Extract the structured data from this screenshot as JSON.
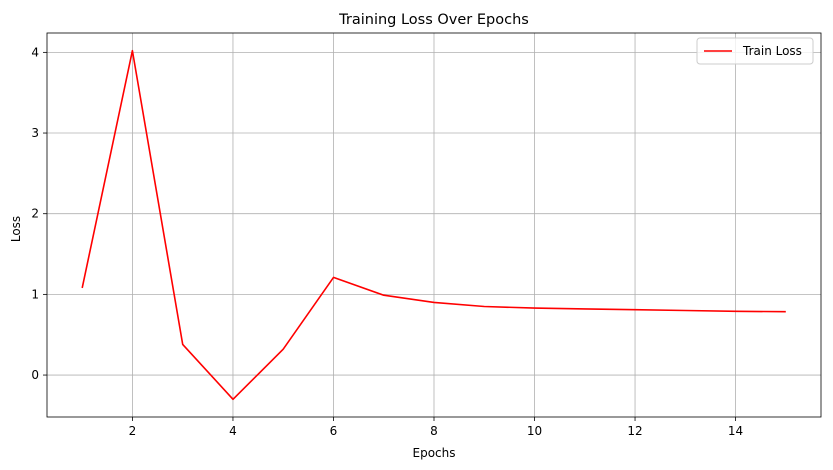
{
  "chart_data": {
    "type": "line",
    "title": "Training Loss Over Epochs",
    "xlabel": "Epochs",
    "ylabel": "Loss",
    "xlim": [
      0.3,
      15.7
    ],
    "ylim": [
      -0.52,
      4.24
    ],
    "xticks": [
      2,
      4,
      6,
      8,
      10,
      12,
      14
    ],
    "yticks": [
      0,
      1,
      2,
      3,
      4
    ],
    "grid": true,
    "legend_position": "top-right",
    "series": [
      {
        "name": "Train Loss",
        "color": "#ff0000",
        "x": [
          1,
          2,
          3,
          4,
          5,
          6,
          7,
          8,
          9,
          10,
          11,
          12,
          13,
          14,
          15
        ],
        "y": [
          1.08,
          4.02,
          0.38,
          -0.3,
          0.32,
          1.21,
          0.99,
          0.9,
          0.85,
          0.83,
          0.82,
          0.81,
          0.8,
          0.79,
          0.785
        ]
      }
    ]
  }
}
